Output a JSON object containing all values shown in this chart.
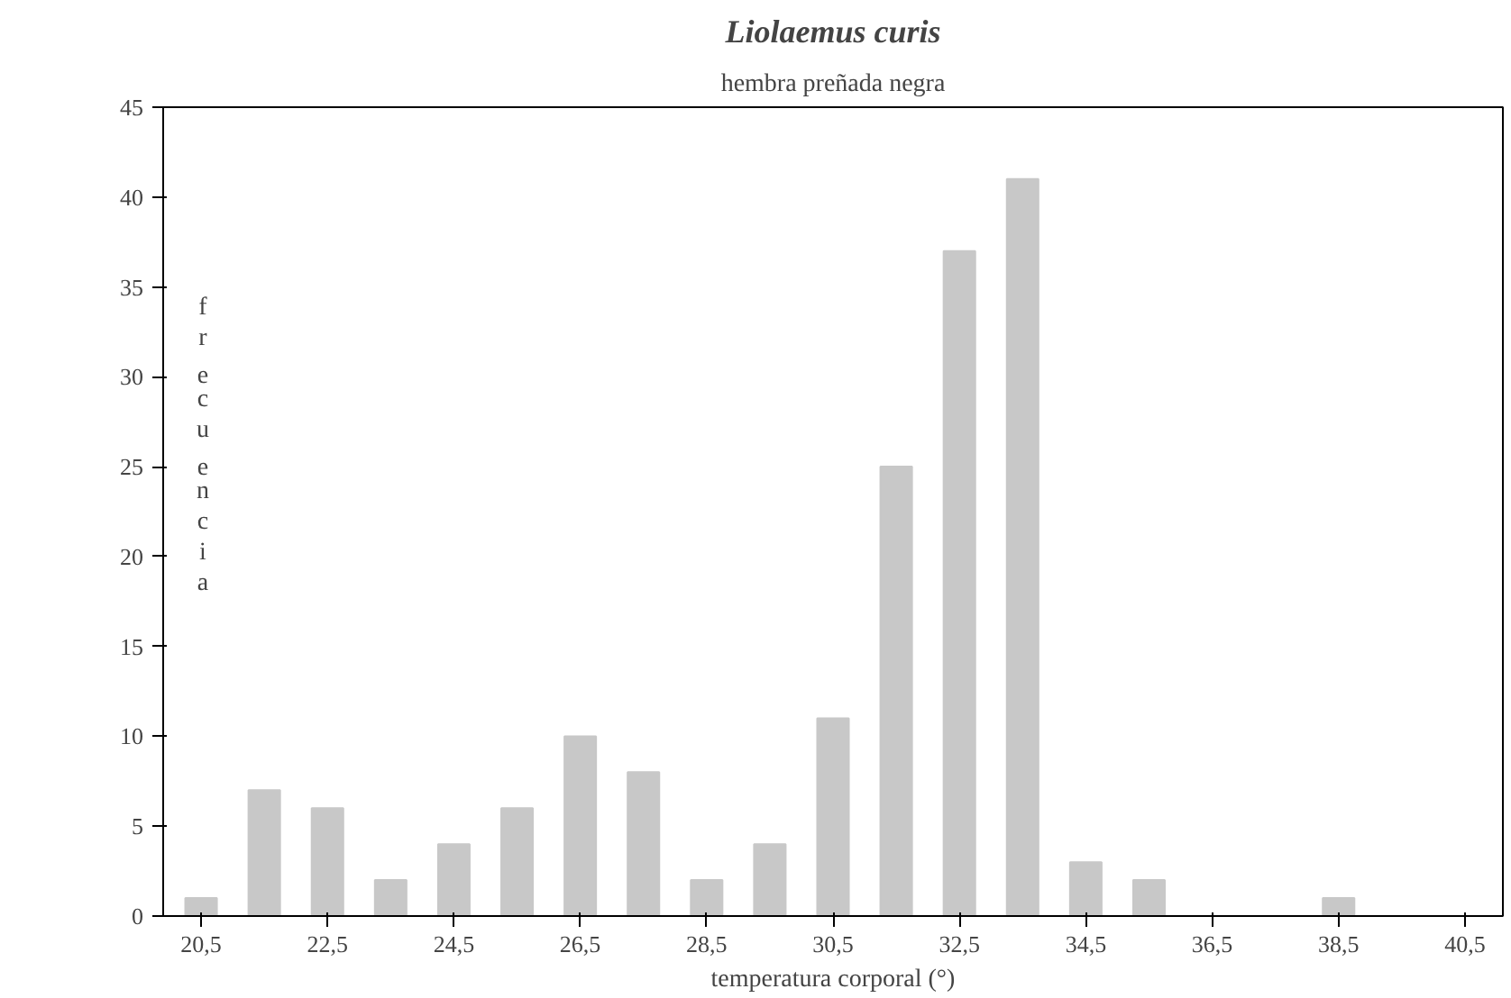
{
  "chart_data": {
    "type": "bar",
    "title": "Liolaemus curis",
    "subtitle": "hembra preñada negra",
    "xlabel": "temperatura corporal (°)",
    "ylabel": "frecuencia",
    "categories": [
      "20,5",
      null,
      "22,5",
      null,
      "24,5",
      null,
      "26,5",
      null,
      "28,5",
      null,
      "30,5",
      null,
      "32,5",
      null,
      "34,5",
      null,
      "36,5",
      null,
      "38,5",
      null,
      "40,5"
    ],
    "values": [
      1,
      7,
      6,
      2,
      4,
      6,
      10,
      8,
      2,
      4,
      11,
      25,
      37,
      41,
      3,
      2,
      0,
      0,
      1,
      0,
      0
    ],
    "color": "#c8c8c8",
    "ylim": [
      0,
      45
    ],
    "yticks": [
      0,
      5,
      10,
      15,
      20,
      25,
      30,
      35,
      40,
      45
    ],
    "grid": false
  }
}
